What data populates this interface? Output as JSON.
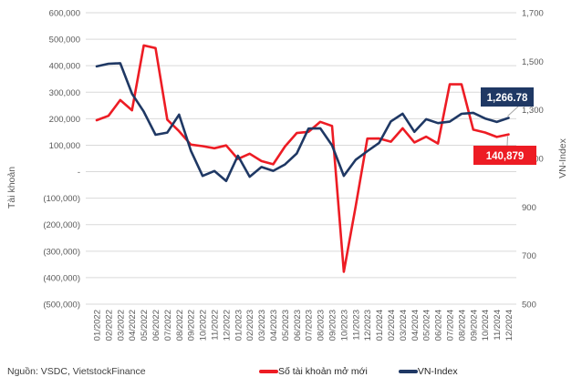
{
  "source_text": "Nguồn: VSDC, VietstockFinance",
  "colors": {
    "accounts_series": "#ED1C24",
    "vnindex_series": "#1F3864",
    "gridline": "#D9D9D9",
    "tick_text": "#595959",
    "leader_line": "#A6A6A6"
  },
  "legend": [
    {
      "label": "Số tài khoản mở mới",
      "color": "#ED1C24"
    },
    {
      "label": "VN-Index",
      "color": "#1F3864"
    }
  ],
  "chart_data": {
    "type": "line",
    "title": "",
    "grid": true,
    "legend_position": "bottom-right",
    "x_labels": [
      "01/2022",
      "02/2022",
      "03/2022",
      "04/2022",
      "05/2022",
      "06/2022",
      "07/2022",
      "08/2022",
      "09/2022",
      "10/2022",
      "11/2022",
      "12/2022",
      "01/2023",
      "02/2023",
      "03/2023",
      "04/2023",
      "05/2023",
      "06/2023",
      "07/2023",
      "08/2023",
      "09/2023",
      "10/2023",
      "11/2023",
      "12/2023",
      "01/2024",
      "02/2024",
      "03/2024",
      "04/2024",
      "05/2024",
      "06/2024",
      "07/2024",
      "08/2024",
      "09/2024",
      "10/2024",
      "11/2024",
      "12/2024"
    ],
    "left_axis": {
      "title": "Tài khoản",
      "min": -500000,
      "max": 600000,
      "step": 100000,
      "ticks": [
        {
          "label": "600,000",
          "value": 600000
        },
        {
          "label": "500,000",
          "value": 500000
        },
        {
          "label": "400,000",
          "value": 400000
        },
        {
          "label": "300,000",
          "value": 300000
        },
        {
          "label": "200,000",
          "value": 200000
        },
        {
          "label": "100,000",
          "value": 100000
        },
        {
          "label": "-",
          "value": 0
        },
        {
          "label": "(100,000)",
          "value": -100000
        },
        {
          "label": "(200,000)",
          "value": -200000
        },
        {
          "label": "(300,000)",
          "value": -300000
        },
        {
          "label": "(400,000)",
          "value": -400000
        },
        {
          "label": "(500,000)",
          "value": -500000
        }
      ]
    },
    "right_axis": {
      "title": "VN-Index",
      "min": 500,
      "max": 1700,
      "step": 200,
      "ticks": [
        {
          "label": "1,700",
          "value": 1700
        },
        {
          "label": "1,500",
          "value": 1500
        },
        {
          "label": "1,300",
          "value": 1300
        },
        {
          "label": "1,100",
          "value": 1100
        },
        {
          "label": "900",
          "value": 900
        },
        {
          "label": "700",
          "value": 700
        },
        {
          "label": "500",
          "value": 500
        }
      ]
    },
    "series": [
      {
        "name": "Số tài khoản mở mới",
        "axis": "left",
        "color": "#ED1C24",
        "values": [
          194305,
          210883,
          270217,
          231782,
          476711,
          466483,
          196540,
          152873,
          102244,
          96427,
          88334,
          99219,
          48000,
          68000,
          40000,
          28000,
          95000,
          145864,
          150351,
          188298,
          172695,
          -378137,
          -133000,
          125058,
          125356,
          113175,
          163621,
          110622,
          132220,
          106417,
          329836,
          330000,
          158504,
          148000,
          131000,
          140879
        ]
      },
      {
        "name": "VN-Index",
        "axis": "right",
        "color": "#1F3864",
        "values": [
          1478.96,
          1490.13,
          1492.15,
          1366.8,
          1292.68,
          1197.6,
          1206.33,
          1280.51,
          1132.11,
          1027.94,
          1048.42,
          1007.09,
          1111.18,
          1024.68,
          1064.64,
          1049.12,
          1075.17,
          1120.18,
          1222.9,
          1224.05,
          1154.15,
          1028.19,
          1094.13,
          1129.93,
          1164.31,
          1252.73,
          1284.09,
          1209.52,
          1261.72,
          1245.32,
          1251.51,
          1283.87,
          1287.94,
          1264.48,
          1250.46,
          1266.78
        ]
      }
    ],
    "annotations": [
      {
        "series": "Số tài khoản mở mới",
        "point": "12/2024",
        "label": "140,879",
        "box_color": "#ED1C24",
        "text_color": "#ffffff"
      },
      {
        "series": "VN-Index",
        "point": "12/2024",
        "label": "1,266.78",
        "box_color": "#1F3864",
        "text_color": "#ffffff"
      }
    ]
  }
}
